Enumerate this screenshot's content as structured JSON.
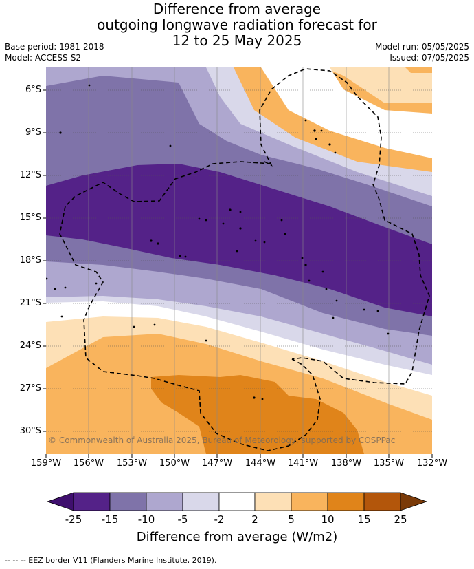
{
  "title": {
    "line1": "Difference from average",
    "line2": "outgoing longwave radiation forecast for",
    "line3": "12 to 25 May 2025"
  },
  "meta": {
    "base_period": "Base period: 1981-2018",
    "model": "Model: ACCESS-S2",
    "model_run": "Model run: 05/05/2025",
    "issued": "Issued: 07/05/2025"
  },
  "map": {
    "lat_labels": [
      "6°S",
      "9°S",
      "12°S",
      "15°S",
      "18°S",
      "21°S",
      "24°S",
      "27°S",
      "30°S"
    ],
    "lon_labels": [
      "159°W",
      "156°W",
      "153°W",
      "150°W",
      "147°W",
      "144°W",
      "141°W",
      "138°W",
      "135°W",
      "132°W"
    ],
    "copyright": "© Commonwealth of Australia 2025, Bureau of Meteorology, supported by COSPPac",
    "colors": {
      "c_m25": "#3f0f6e",
      "c_m15": "#542288",
      "c_m10": "#7f73a9",
      "c_m5": "#aea7cf",
      "c_m2": "#d9d8ea",
      "c_0": "#ffffff",
      "c_2": "#fde0b6",
      "c_5": "#f9b45d",
      "c_10": "#e0841a",
      "c_15": "#b3560b",
      "c_25": "#7a3a08"
    }
  },
  "colorbar": {
    "labels": [
      "-25",
      "-15",
      "-10",
      "-5",
      "-2",
      "2",
      "5",
      "10",
      "15",
      "25"
    ],
    "title": "Difference from average (W/m2)"
  },
  "footer": "--  --  -- EEZ border V11 (Flanders Marine Institute, 2019)."
}
